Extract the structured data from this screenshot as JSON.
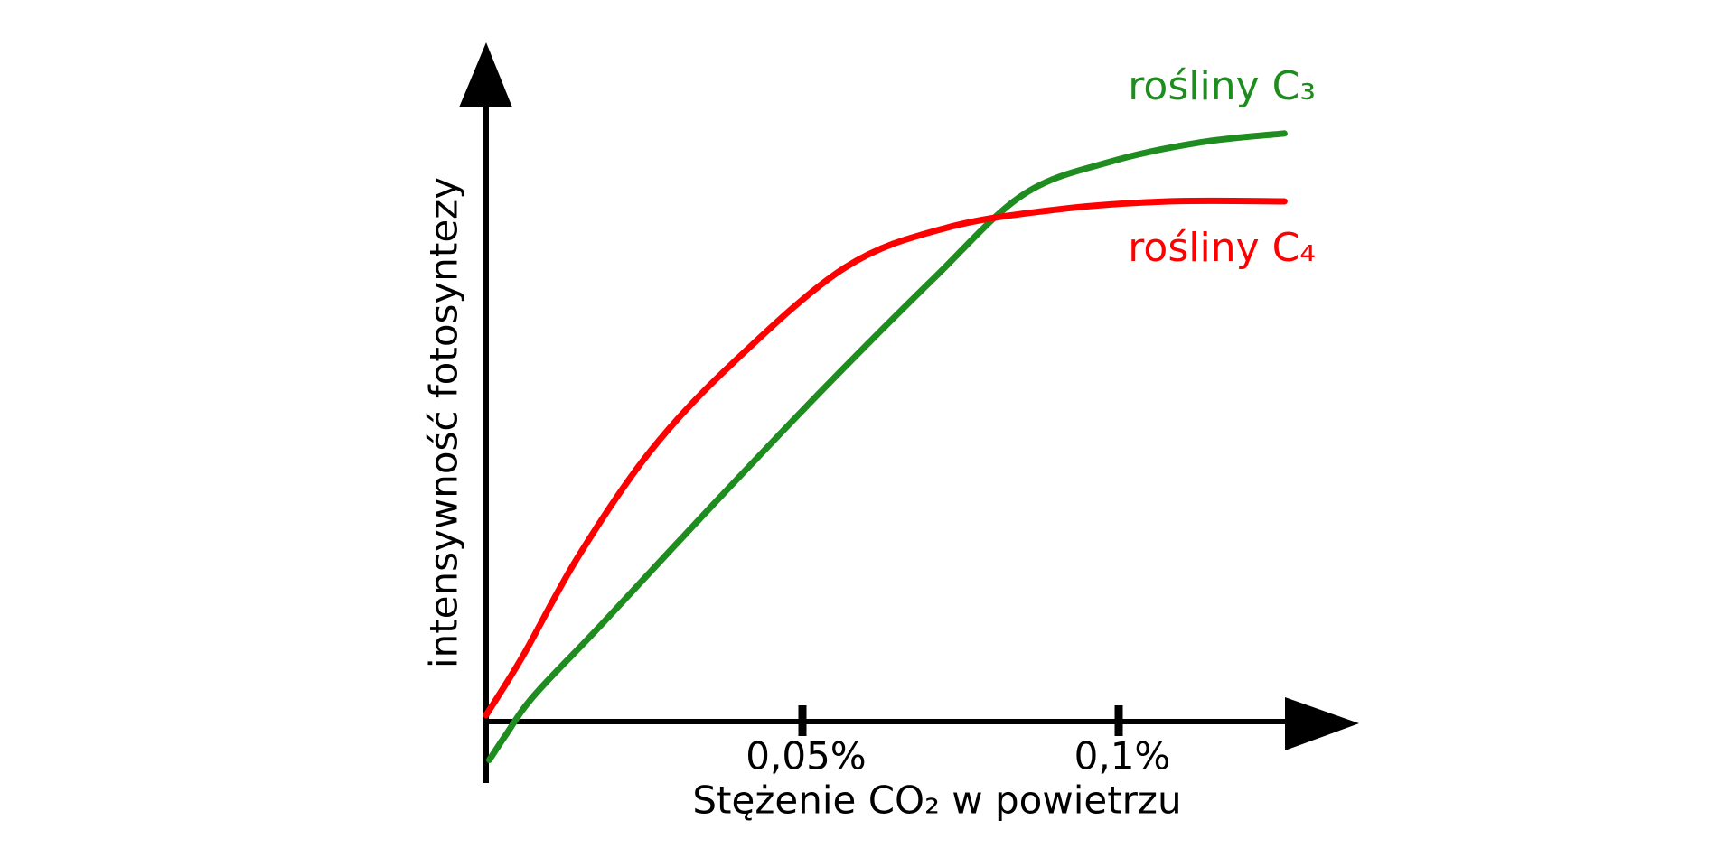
{
  "chart_data": {
    "type": "line",
    "x_label": "Stężenie CO₂ w powietrzu",
    "y_label": "intensywność fotosyntezy",
    "xlim": [
      0,
      0.138
    ],
    "ylim": [
      -9,
      100
    ],
    "xticks": [
      {
        "value": 0.05,
        "label": "0,05%"
      },
      {
        "value": 0.1,
        "label": "0,1%"
      }
    ],
    "series": [
      {
        "name": "rośliny C₃",
        "color": "#1f8c1f",
        "x": [
          0.0005,
          0.0032,
          0.0076,
          0.0181,
          0.0357,
          0.0532,
          0.0708,
          0.0849,
          0.0989,
          0.113,
          0.1262
        ],
        "values": [
          -5.6,
          -1.8,
          3.9,
          14.2,
          31.8,
          48.9,
          65.3,
          77.6,
          82.5,
          85.3,
          86.6
        ]
      },
      {
        "name": "rośliny C₄",
        "color": "#ff0000",
        "x": [
          0,
          0.0058,
          0.0146,
          0.026,
          0.0392,
          0.0568,
          0.0727,
          0.0902,
          0.1078,
          0.1262
        ],
        "values": [
          1.0,
          9.7,
          24.4,
          39.9,
          53.0,
          66.9,
          72.7,
          75.4,
          76.6,
          76.6
        ]
      }
    ]
  }
}
